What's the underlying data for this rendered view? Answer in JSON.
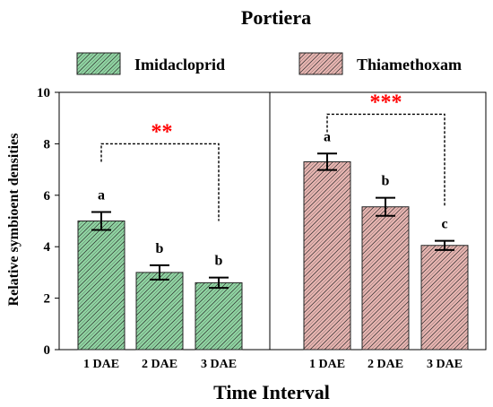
{
  "chart_data": {
    "type": "bar",
    "title": "Portiera",
    "xlabel": "Time Interval",
    "ylabel": "Relative symbioent densities",
    "ylim": [
      0,
      10
    ],
    "yticks": [
      "0",
      "2",
      "4",
      "6",
      "8",
      "10"
    ],
    "categories": [
      "1 DAE",
      "2 DAE",
      "3 DAE"
    ],
    "legend_position": "top",
    "series": [
      {
        "name": "Imidacloprid",
        "color": "#8fd3a1",
        "values": [
          5.0,
          3.0,
          2.6
        ],
        "errors": [
          0.35,
          0.28,
          0.2
        ],
        "letters": [
          "a",
          "b",
          "b"
        ],
        "significance": "**",
        "bracket_from": "1 DAE",
        "bracket_to": "3 DAE"
      },
      {
        "name": "Thiamethoxam",
        "color": "#e6b4b0",
        "values": [
          7.3,
          5.55,
          4.05
        ],
        "errors": [
          0.32,
          0.35,
          0.18
        ],
        "letters": [
          "a",
          "b",
          "c"
        ],
        "significance": "***",
        "bracket_from": "1 DAE",
        "bracket_to": "3 DAE"
      }
    ],
    "significance_color": "#ff0000"
  }
}
